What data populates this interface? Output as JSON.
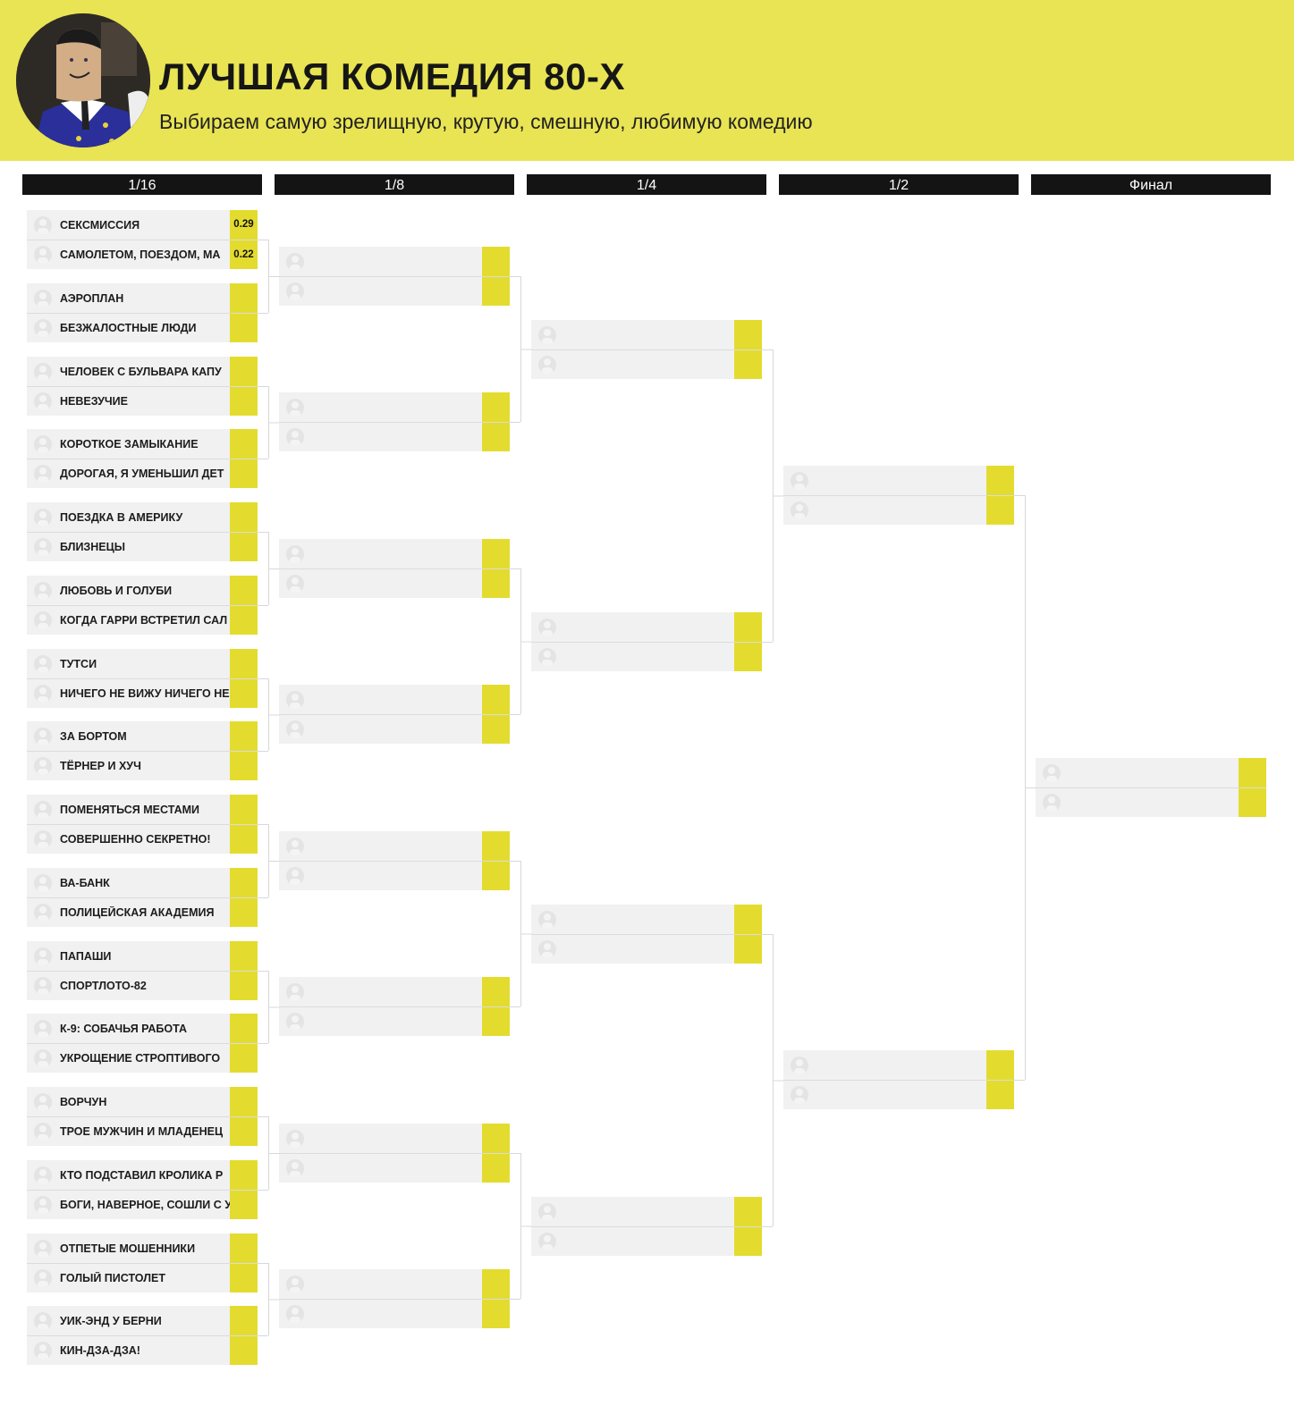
{
  "header": {
    "title": "ЛУЧШАЯ КОМЕДИЯ 80-Х",
    "subtitle": "Выбираем самую зрелищную, крутую, смешную, любимую комедию",
    "background_color": "#e9e453"
  },
  "colors": {
    "score": "#e3dc2f",
    "row": "#f1f1f1",
    "round_header": "#141414"
  },
  "rounds": [
    {
      "label": "1/16"
    },
    {
      "label": "1/8"
    },
    {
      "label": "1/4"
    },
    {
      "label": "1/2"
    },
    {
      "label": "Финал"
    }
  ],
  "first_round": [
    {
      "a": "СЕКСМИССИЯ",
      "a_score": "0.29",
      "b": "САМОЛЕТОМ, ПОЕЗДОМ, МА",
      "b_score": "0.22"
    },
    {
      "a": "АЭРОПЛАН",
      "b": "БЕЗЖАЛОСТНЫЕ ЛЮДИ"
    },
    {
      "a": "ЧЕЛОВЕК С БУЛЬВАРА КАПУ",
      "b": "НЕВЕЗУЧИЕ"
    },
    {
      "a": "КОРОТКОЕ ЗАМЫКАНИЕ",
      "b": "ДОРОГАЯ, Я УМЕНЬШИЛ ДЕТ"
    },
    {
      "a": "ПОЕЗДКА В АМЕРИКУ",
      "b": "БЛИЗНЕЦЫ"
    },
    {
      "a": "ЛЮБОВЬ И ГОЛУБИ",
      "b": "КОГДА ГАРРИ ВСТРЕТИЛ САЛ"
    },
    {
      "a": "ТУТСИ",
      "b": "НИЧЕГО НЕ ВИЖУ НИЧЕГО НЕ"
    },
    {
      "a": "ЗА БОРТОМ",
      "b": "ТЁРНЕР И ХУЧ"
    },
    {
      "a": "ПОМЕНЯТЬСЯ МЕСТАМИ",
      "b": "СОВЕРШЕННО СЕКРЕТНО!"
    },
    {
      "a": "ВА-БАНК",
      "b": "ПОЛИЦЕЙСКАЯ АКАДЕМИЯ"
    },
    {
      "a": "ПАПАШИ",
      "b": "СПОРТЛОТО-82"
    },
    {
      "a": "К-9: СОБАЧЬЯ РАБОТА",
      "b": "УКРОЩЕНИЕ СТРОПТИВОГО"
    },
    {
      "a": "ВОРЧУН",
      "b": "ТРОЕ МУЖЧИН И МЛАДЕНЕЦ"
    },
    {
      "a": "КТО ПОДСТАВИЛ КРОЛИКА Р",
      "b": "БОГИ, НАВЕРНОЕ, СОШЛИ С У"
    },
    {
      "a": "ОТПЕТЫЕ МОШЕННИКИ",
      "b": "ГОЛЫЙ ПИСТОЛЕТ"
    },
    {
      "a": "УИК-ЭНД У БЕРНИ",
      "b": "КИН-ДЗА-ДЗА!"
    }
  ]
}
